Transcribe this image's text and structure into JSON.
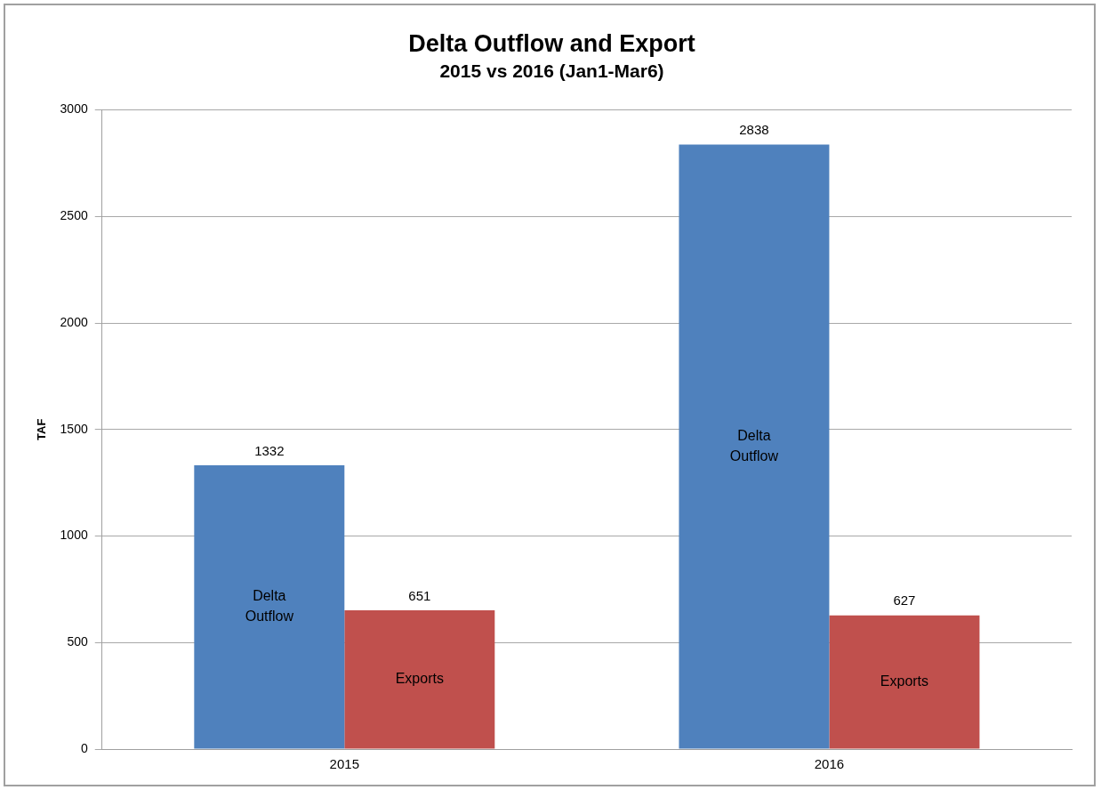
{
  "chart_data": {
    "type": "bar",
    "title": "Delta Outflow and Export",
    "subtitle": "2015 vs 2016 (Jan1-Mar6)",
    "ylabel": "TAF",
    "categories": [
      "2015",
      "2016"
    ],
    "series": [
      {
        "name": "Delta Outflow",
        "color": "#4f81bd",
        "values": [
          1332,
          2838
        ]
      },
      {
        "name": "Exports",
        "color": "#c0504d",
        "values": [
          651,
          627
        ]
      }
    ],
    "ylim": [
      0,
      3000
    ],
    "yticks": [
      0,
      500,
      1000,
      1500,
      2000,
      2500,
      3000
    ],
    "grid": "y",
    "data_labels": true,
    "legend": false
  }
}
